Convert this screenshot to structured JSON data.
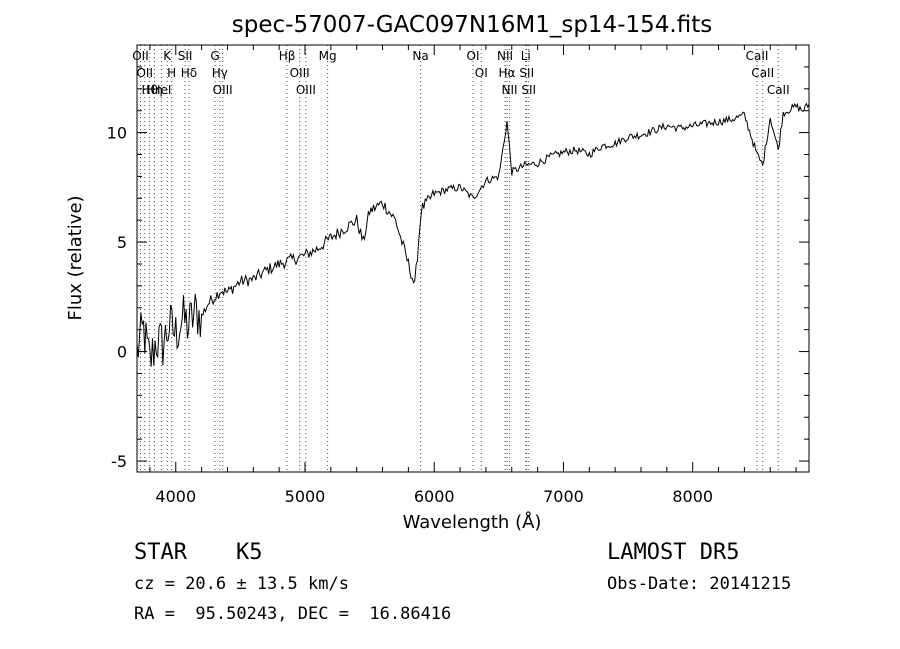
{
  "chart_data": {
    "type": "line",
    "title": "spec-57007-GAC097N16M1_sp14-154.fits",
    "xlabel": "Wavelength (Å)",
    "ylabel": "Flux (relative)",
    "xlim": [
      3700,
      8900
    ],
    "ylim": [
      -5.5,
      14
    ],
    "xticks": [
      4000,
      5000,
      6000,
      7000,
      8000
    ],
    "xtick_labels": [
      "4000",
      "5000",
      "6000",
      "7000",
      "8000"
    ],
    "yticks": [
      -5,
      0,
      5,
      10
    ],
    "ytick_labels": [
      "-5",
      "0",
      "5",
      "10"
    ],
    "line_color": "#000000",
    "marker_color": "#b22222",
    "grid": false,
    "series": [
      {
        "x": [
          3700,
          3750,
          3800,
          3850,
          3900,
          3950,
          4000,
          4050,
          4100,
          4150,
          4200,
          4250,
          4300,
          4350,
          4400,
          4500,
          4600,
          4700,
          4800,
          4900,
          5000,
          5100,
          5200,
          5300,
          5400,
          5450,
          5500,
          5600,
          5700,
          5800,
          5850,
          5900,
          6000,
          6100,
          6200,
          6300,
          6400,
          6500,
          6563,
          6600,
          6700,
          6800,
          6900,
          7000,
          7100,
          7200,
          7300,
          7400,
          7500,
          7600,
          7700,
          7800,
          7900,
          8000,
          8100,
          8200,
          8300,
          8400,
          8498,
          8542,
          8600,
          8662,
          8700,
          8800,
          8850,
          8900
        ],
        "y": [
          0,
          1,
          -0.5,
          0.5,
          0.3,
          1.2,
          0.8,
          1.5,
          1.2,
          1.8,
          1.6,
          2.2,
          2.5,
          2.8,
          2.7,
          3.2,
          3.3,
          3.7,
          4.0,
          4.2,
          4.4,
          4.7,
          5.2,
          5.6,
          6.0,
          5.0,
          6.4,
          6.8,
          6.0,
          4.0,
          3.0,
          6.5,
          7.2,
          7.4,
          7.5,
          7.0,
          7.8,
          8.0,
          10.5,
          8.2,
          8.5,
          8.6,
          8.9,
          9.1,
          9.2,
          9.0,
          9.4,
          9.5,
          9.8,
          9.9,
          10.1,
          10.3,
          10.2,
          10.3,
          10.4,
          10.5,
          10.6,
          10.8,
          9.0,
          8.5,
          10.7,
          9.2,
          10.9,
          11.2,
          11.0,
          11.3
        ]
      }
    ],
    "lines": [
      {
        "x": 3727,
        "label": "OII"
      },
      {
        "x": 3760,
        "label": "OII"
      },
      {
        "x": 3798,
        "label": "Hθ"
      },
      {
        "x": 3835,
        "label": "Hη"
      },
      {
        "x": 3889,
        "label": "HeI"
      },
      {
        "x": 3934,
        "label": "K"
      },
      {
        "x": 3968,
        "label": "H"
      },
      {
        "x": 4072,
        "label": "SII"
      },
      {
        "x": 4102,
        "label": "Hδ"
      },
      {
        "x": 4304,
        "label": "G"
      },
      {
        "x": 4341,
        "label": "Hγ"
      },
      {
        "x": 4363,
        "label": "OIII"
      },
      {
        "x": 4861,
        "label": "Hβ"
      },
      {
        "x": 4959,
        "label": "OIII"
      },
      {
        "x": 5007,
        "label": "OIII"
      },
      {
        "x": 5175,
        "label": "Mg"
      },
      {
        "x": 5894,
        "label": "Na"
      },
      {
        "x": 6300,
        "label": "OI"
      },
      {
        "x": 6364,
        "label": "OI"
      },
      {
        "x": 6548,
        "label": "NII"
      },
      {
        "x": 6563,
        "label": "Hα"
      },
      {
        "x": 6583,
        "label": "NII"
      },
      {
        "x": 6708,
        "label": "Li"
      },
      {
        "x": 6716,
        "label": "SII"
      },
      {
        "x": 6731,
        "label": "SII"
      },
      {
        "x": 8498,
        "label": "CaII"
      },
      {
        "x": 8542,
        "label": "CaII"
      },
      {
        "x": 8662,
        "label": "CaII"
      }
    ]
  },
  "info": {
    "class": "STAR",
    "subclass": "K5",
    "cz": "cz = 20.6 ± 13.5 km/s",
    "coords": "RA =  95.50243, DEC =  16.86416",
    "survey": "LAMOST DR5",
    "obsdate": "Obs-Date: 20141215"
  }
}
